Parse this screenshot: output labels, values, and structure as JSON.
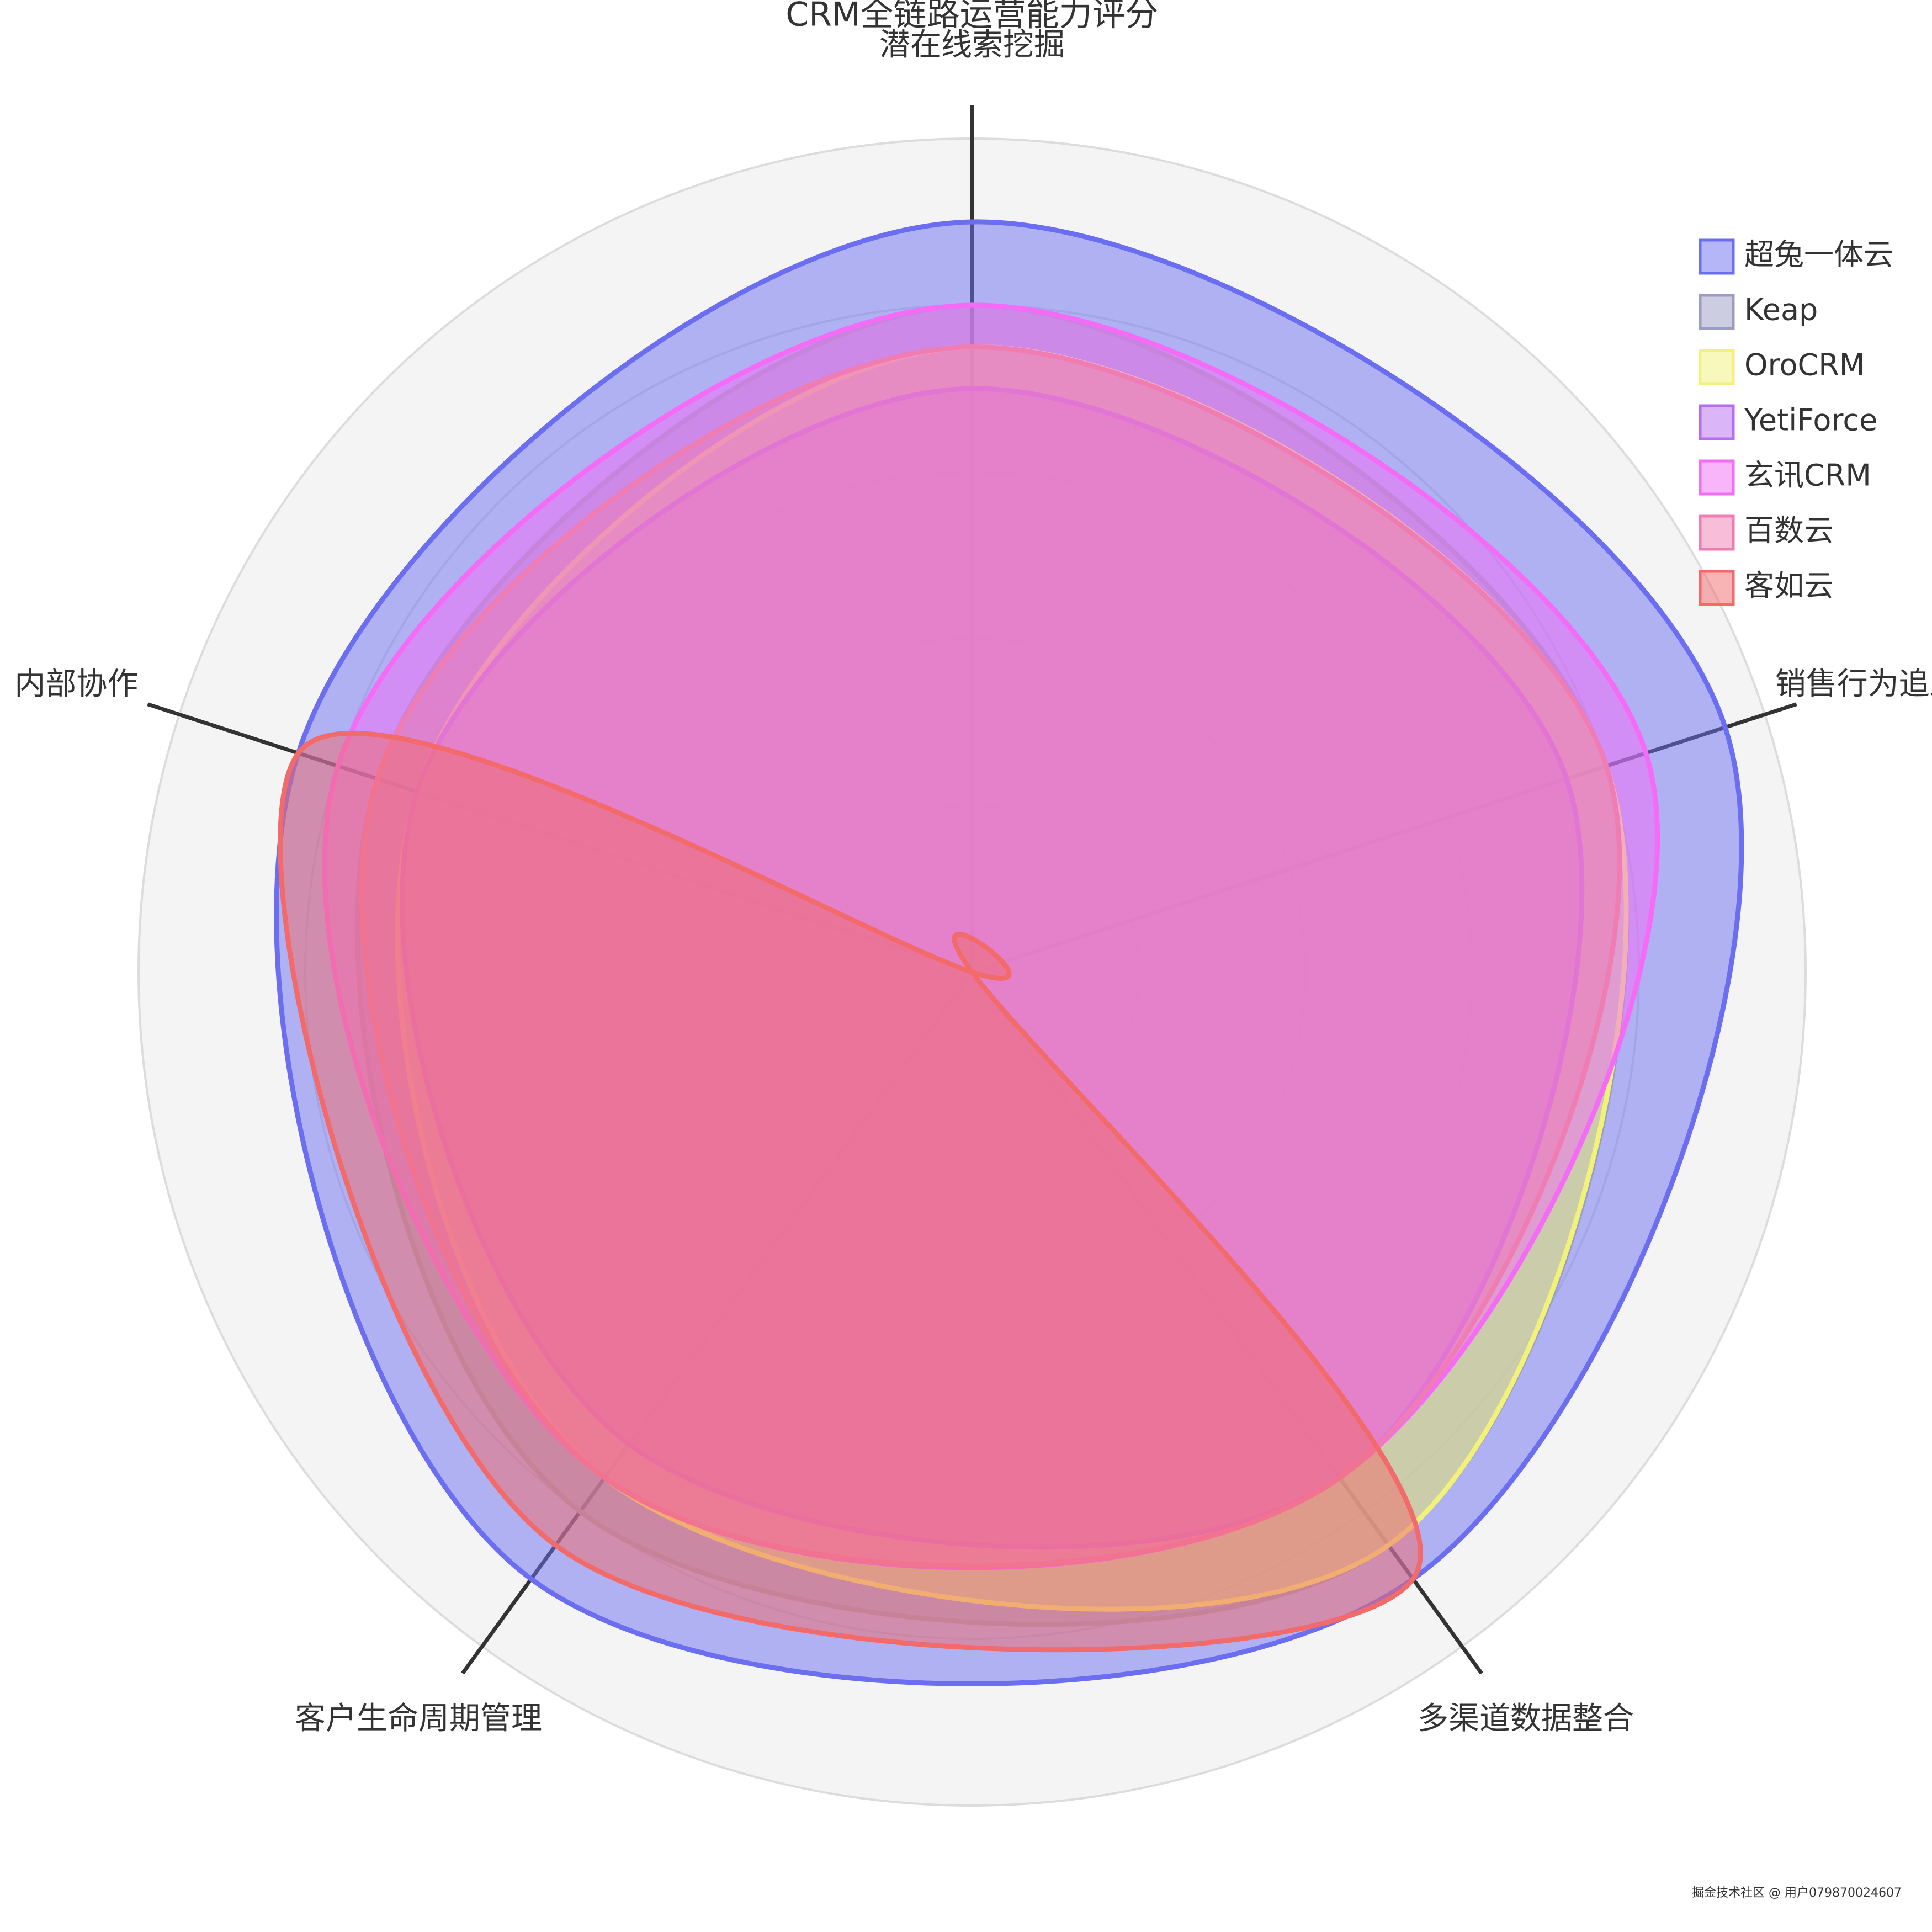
{
  "chart_data": {
    "type": "radar",
    "title": "CRM全链路运营能力评分",
    "categories": [
      "潜在线索挖掘",
      "销售行为追踪",
      "多渠道数据整合",
      "客户生命周期管理",
      "内部协作"
    ],
    "ylim": [
      0,
      10
    ],
    "yticks": [
      2,
      4,
      6,
      8,
      10
    ],
    "grid": true,
    "smooth": true,
    "legend": "right",
    "series": [
      {
        "name": "超兔一体云",
        "color": "#6b6ef0",
        "values": [
          9,
          9.5,
          9,
          9,
          8.5
        ]
      },
      {
        "name": "Keap",
        "color": "#9a9cc4",
        "values": [
          8,
          8,
          8.5,
          8,
          7.5
        ]
      },
      {
        "name": "OroCRM",
        "color": "#f2f27a",
        "values": [
          7.5,
          8,
          8.5,
          7.5,
          7
        ]
      },
      {
        "name": "YetiForce",
        "color": "#b66cf2",
        "values": [
          7,
          7.5,
          7.5,
          7,
          7
        ]
      },
      {
        "name": "玄讯CRM",
        "color": "#f46cf6",
        "values": [
          8,
          8.5,
          7.5,
          7.5,
          8
        ]
      },
      {
        "name": "百数云",
        "color": "#f07cb4",
        "values": [
          7.5,
          8,
          7.5,
          7.5,
          7.5
        ]
      },
      {
        "name": "客如云",
        "color": "#f26a6a",
        "values": [
          0,
          0,
          9,
          8.5,
          8.5
        ]
      }
    ],
    "watermark": "掘金技术社区 @ 用户079870024607"
  }
}
